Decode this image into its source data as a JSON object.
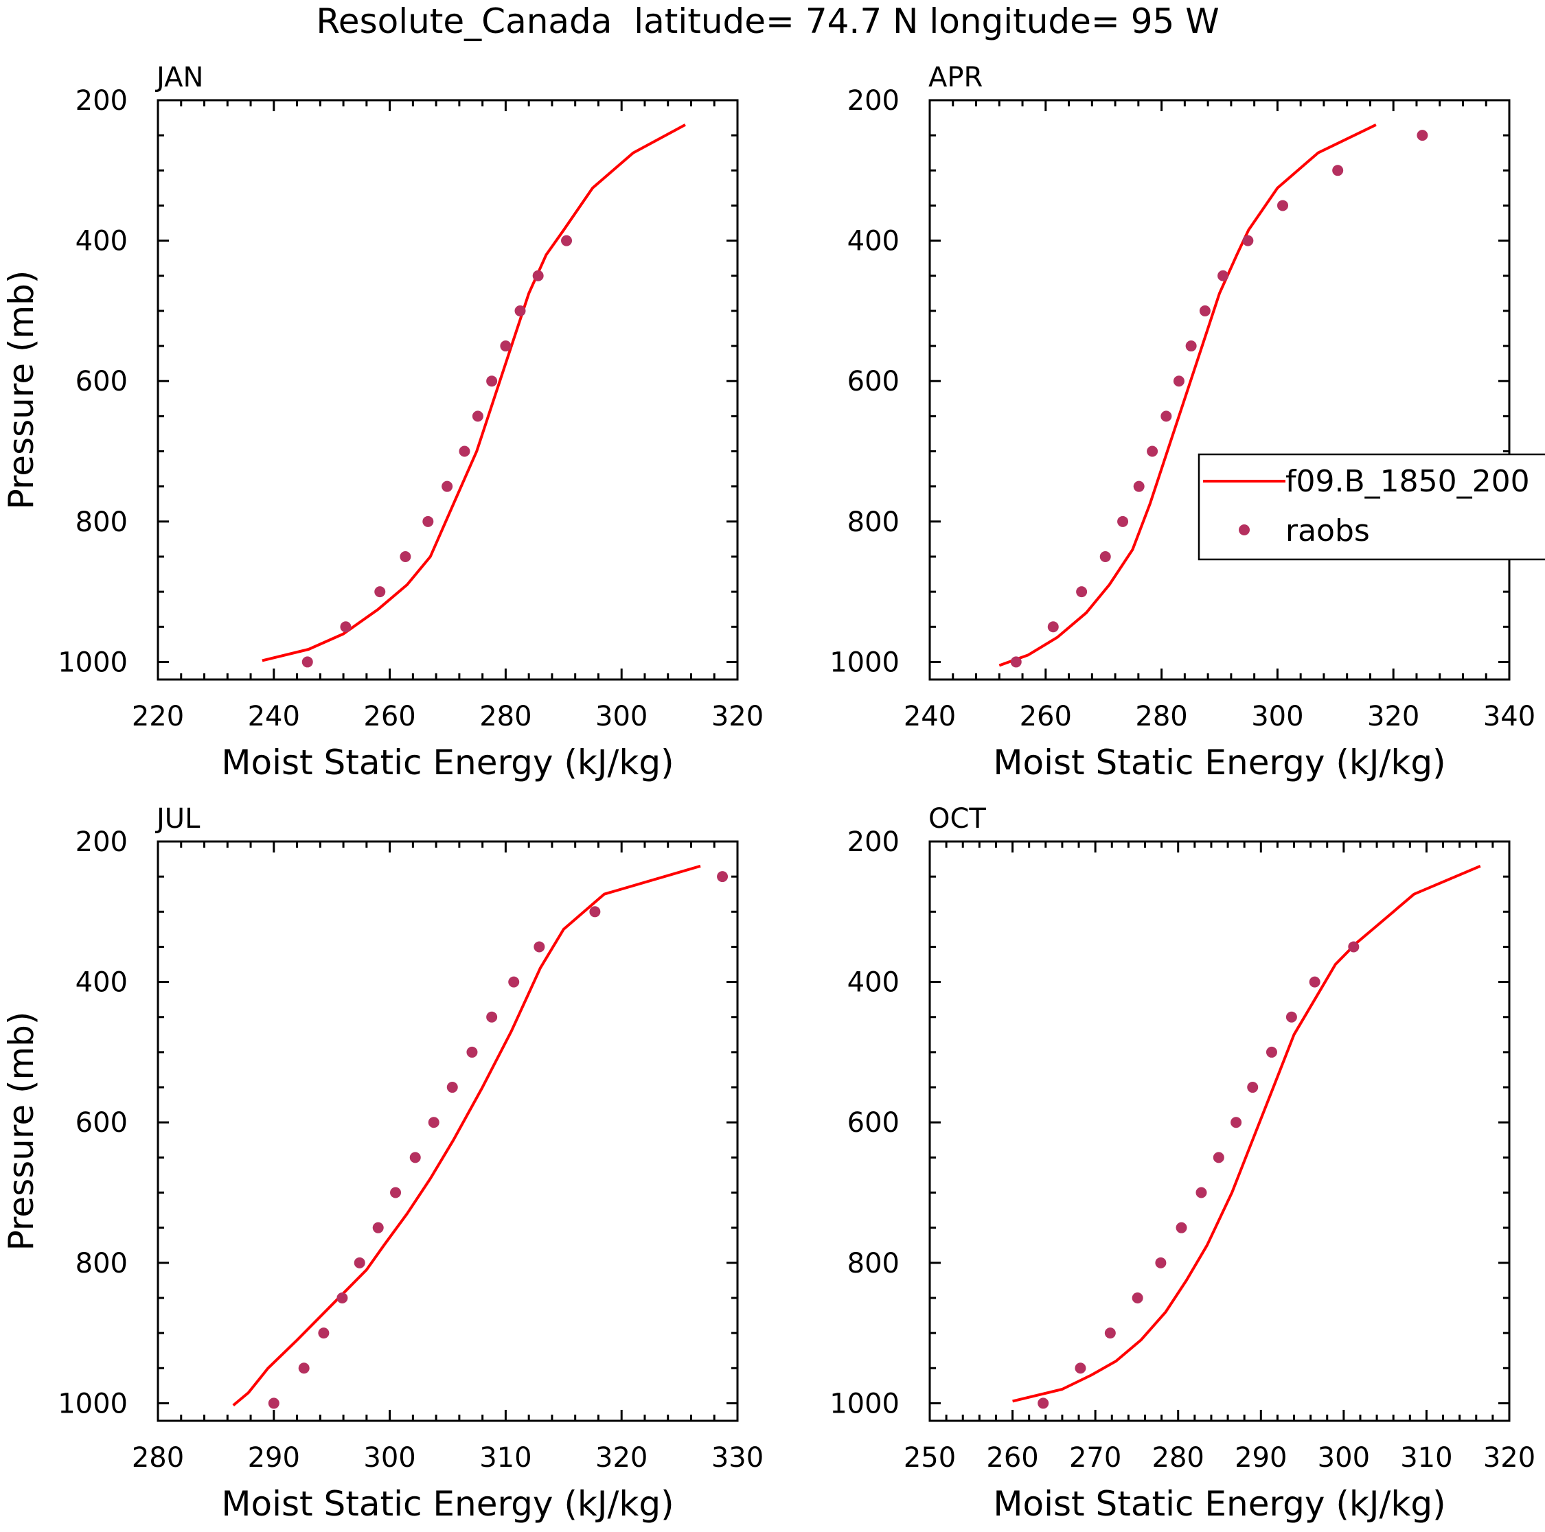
{
  "title": "Resolute_Canada  latitude= 74.7 N longitude= 95 W",
  "colors": {
    "model": "#ff0000",
    "obs": "#b5305f",
    "axis": "#000000"
  },
  "legend": {
    "model_label": "f09.B_1850_200",
    "obs_label": "raobs",
    "panel": "APR"
  },
  "chart_data": [
    {
      "type": "line",
      "title": "JAN",
      "xlabel": "Moist Static Energy (kJ/kg)",
      "ylabel": "Pressure (mb)",
      "xlim": [
        220,
        320
      ],
      "ylim": [
        1025,
        200
      ],
      "xticks": [
        220,
        240,
        260,
        280,
        300,
        320
      ],
      "yticks": [
        200,
        400,
        600,
        800,
        1000
      ],
      "series": [
        {
          "name": "f09.B_1850_200",
          "kind": "line",
          "x": [
            238,
            246,
            252,
            258,
            263,
            267,
            271,
            275,
            278,
            281,
            284,
            287,
            290,
            295,
            302,
            311
          ],
          "y": [
            998,
            982,
            960,
            925,
            890,
            850,
            775,
            700,
            625,
            550,
            475,
            420,
            385,
            325,
            275,
            235
          ]
        },
        {
          "name": "raobs",
          "kind": "scatter",
          "x": [
            245.8,
            252.4,
            258.3,
            262.7,
            266.6,
            269.9,
            272.9,
            275.2,
            277.6,
            280.0,
            282.5,
            285.6,
            290.5
          ],
          "y": [
            1000,
            950,
            900,
            850,
            800,
            750,
            700,
            650,
            600,
            550,
            500,
            450,
            400
          ]
        }
      ]
    },
    {
      "type": "line",
      "title": "APR",
      "xlabel": "Moist Static Energy (kJ/kg)",
      "ylabel": "",
      "xlim": [
        240,
        340
      ],
      "ylim": [
        1025,
        200
      ],
      "xticks": [
        240,
        260,
        280,
        300,
        320,
        340
      ],
      "yticks": [
        200,
        400,
        600,
        800,
        1000
      ],
      "series": [
        {
          "name": "f09.B_1850_200",
          "kind": "line",
          "x": [
            252,
            257,
            262,
            267,
            271,
            275,
            278,
            281,
            284,
            287,
            290,
            293,
            295,
            300,
            307,
            317
          ],
          "y": [
            1005,
            990,
            965,
            930,
            890,
            840,
            775,
            700,
            625,
            550,
            475,
            420,
            385,
            325,
            275,
            235
          ]
        },
        {
          "name": "raobs",
          "kind": "scatter",
          "x": [
            254.9,
            261.3,
            266.2,
            270.3,
            273.3,
            276.1,
            278.4,
            280.8,
            283.0,
            285.1,
            287.5,
            290.6,
            294.9,
            300.9,
            310.4,
            325.0
          ],
          "y": [
            1000,
            950,
            900,
            850,
            800,
            750,
            700,
            650,
            600,
            550,
            500,
            450,
            400,
            350,
            300,
            250
          ]
        }
      ]
    },
    {
      "type": "line",
      "title": "JUL",
      "xlabel": "Moist Static Energy (kJ/kg)",
      "ylabel": "Pressure (mb)",
      "xlim": [
        280,
        330
      ],
      "ylim": [
        1025,
        200
      ],
      "xticks": [
        280,
        290,
        300,
        310,
        320,
        330
      ],
      "yticks": [
        200,
        400,
        600,
        800,
        1000
      ],
      "series": [
        {
          "name": "f09.B_1850_200",
          "kind": "line",
          "x": [
            286.5,
            287.8,
            289.5,
            292,
            295,
            298,
            299.5,
            301.5,
            303.5,
            305.5,
            308,
            310.5,
            313,
            315,
            318.5,
            326.8
          ],
          "y": [
            1003,
            985,
            950,
            910,
            860,
            810,
            775,
            730,
            680,
            625,
            550,
            470,
            380,
            325,
            275,
            235
          ]
        },
        {
          "name": "raobs",
          "kind": "scatter",
          "x": [
            290.0,
            292.6,
            294.3,
            295.9,
            297.4,
            299.0,
            300.5,
            302.2,
            303.8,
            305.4,
            307.1,
            308.8,
            310.7,
            312.9,
            317.7,
            328.7
          ],
          "y": [
            1000,
            950,
            900,
            850,
            800,
            750,
            700,
            650,
            600,
            550,
            500,
            450,
            400,
            350,
            300,
            250
          ]
        }
      ]
    },
    {
      "type": "line",
      "title": "OCT",
      "xlabel": "Moist Static Energy (kJ/kg)",
      "ylabel": "",
      "xlim": [
        250,
        320
      ],
      "ylim": [
        1025,
        200
      ],
      "xticks": [
        250,
        260,
        270,
        280,
        290,
        300,
        310,
        320
      ],
      "yticks": [
        200,
        400,
        600,
        800,
        1000
      ],
      "series": [
        {
          "name": "f09.B_1850_200",
          "kind": "line",
          "x": [
            260,
            266,
            269.5,
            272.5,
            275.5,
            278.5,
            281,
            283.5,
            286.5,
            289,
            291.5,
            294,
            296.5,
            299,
            301.5,
            303.5,
            308.5,
            316.5
          ],
          "y": [
            997,
            980,
            960,
            940,
            910,
            870,
            825,
            775,
            700,
            625,
            550,
            475,
            425,
            375,
            345,
            325,
            275,
            235
          ]
        },
        {
          "name": "raobs",
          "kind": "scatter",
          "x": [
            263.7,
            268.2,
            271.8,
            275.1,
            277.9,
            280.4,
            282.8,
            284.9,
            287.0,
            289.0,
            291.3,
            293.7,
            296.5,
            301.2
          ],
          "y": [
            1000,
            950,
            900,
            850,
            800,
            750,
            700,
            650,
            600,
            550,
            500,
            450,
            400,
            350
          ]
        }
      ]
    }
  ]
}
